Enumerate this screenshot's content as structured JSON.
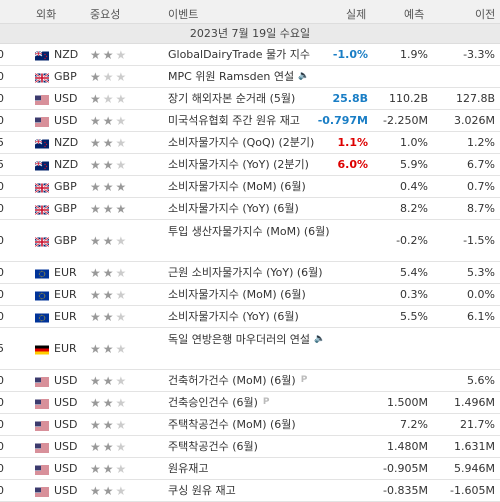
{
  "header": {
    "col_currency": "외화",
    "col_importance": "중요성",
    "col_event": "이벤트",
    "col_actual": "실제",
    "col_forecast": "예측",
    "col_previous": "이전"
  },
  "date_label": "2023년 7월 19일 수요일",
  "rows": [
    {
      "time": "0",
      "cur": "NZD",
      "flag": "nz",
      "stars": 2,
      "event": "GlobalDairyTrade 물가 지수",
      "actual": "-1.0%",
      "actual_color": "blue",
      "forecast": "1.9%",
      "previous": "-3.3%"
    },
    {
      "time": "0",
      "cur": "GBP",
      "flag": "gb",
      "stars": 1,
      "event": "MPC 위원 Ramsden 연설",
      "speech": true,
      "actual": "",
      "actual_color": "",
      "forecast": "",
      "previous": ""
    },
    {
      "time": "0",
      "cur": "USD",
      "flag": "us",
      "stars": 1,
      "event": "장기 해외자본 순거래 (5월)",
      "actual": "25.8B",
      "actual_color": "blue",
      "forecast": "110.2B",
      "previous": "127.8B"
    },
    {
      "time": "0",
      "cur": "USD",
      "flag": "us",
      "stars": 2,
      "event": "미국석유협회 주간 원유 재고",
      "actual": "-0.797M",
      "actual_color": "blue",
      "forecast": "-2.250M",
      "previous": "3.026M"
    },
    {
      "time": "5",
      "cur": "NZD",
      "flag": "nz",
      "stars": 2,
      "event": "소비자물가지수 (QoQ) (2분기)",
      "actual": "1.1%",
      "actual_color": "red",
      "forecast": "1.0%",
      "previous": "1.2%"
    },
    {
      "time": "5",
      "cur": "NZD",
      "flag": "nz",
      "stars": 2,
      "event": "소비자물가지수 (YoY) (2분기)",
      "actual": "6.0%",
      "actual_color": "red",
      "forecast": "5.9%",
      "previous": "6.7%"
    },
    {
      "time": "0",
      "cur": "GBP",
      "flag": "gb",
      "stars": 3,
      "event": "소비자물가지수 (MoM) (6월)",
      "actual": "",
      "actual_color": "",
      "forecast": "0.4%",
      "previous": "0.7%"
    },
    {
      "time": "0",
      "cur": "GBP",
      "flag": "gb",
      "stars": 3,
      "event": "소비자물가지수 (YoY) (6월)",
      "actual": "",
      "actual_color": "",
      "forecast": "8.2%",
      "previous": "8.7%"
    },
    {
      "time": "0",
      "cur": "GBP",
      "flag": "gb",
      "stars": 2,
      "event": "투입 생산자물가지수 (MoM) (6월)",
      "tall": true,
      "actual": "",
      "actual_color": "",
      "forecast": "-0.2%",
      "previous": "-1.5%"
    },
    {
      "time": "0",
      "cur": "EUR",
      "flag": "eu",
      "stars": 2,
      "event": "근원 소비자물가지수 (YoY) (6월)",
      "actual": "",
      "actual_color": "",
      "forecast": "5.4%",
      "previous": "5.3%"
    },
    {
      "time": "0",
      "cur": "EUR",
      "flag": "eu",
      "stars": 2,
      "event": "소비자물가지수 (MoM) (6월)",
      "actual": "",
      "actual_color": "",
      "forecast": "0.3%",
      "previous": "0.0%"
    },
    {
      "time": "0",
      "cur": "EUR",
      "flag": "eu",
      "stars": 2,
      "event": "소비자물가지수 (YoY) (6월)",
      "actual": "",
      "actual_color": "",
      "forecast": "5.5%",
      "previous": "6.1%"
    },
    {
      "time": "5",
      "cur": "EUR",
      "flag": "de",
      "stars": 2,
      "event": "독일 연방은행 마우더러의 연설",
      "speech": true,
      "tall": true,
      "actual": "",
      "actual_color": "",
      "forecast": "",
      "previous": ""
    },
    {
      "time": "0",
      "cur": "USD",
      "flag": "us",
      "stars": 2,
      "event": "건축허가건수 (MoM) (6월)",
      "pmark": true,
      "actual": "",
      "actual_color": "",
      "forecast": "",
      "previous": "5.6%"
    },
    {
      "time": "0",
      "cur": "USD",
      "flag": "us",
      "stars": 2,
      "event": "건축승인건수 (6월)",
      "pmark": true,
      "actual": "",
      "actual_color": "",
      "forecast": "1.500M",
      "previous": "1.496M"
    },
    {
      "time": "0",
      "cur": "USD",
      "flag": "us",
      "stars": 2,
      "event": "주택착공건수 (MoM) (6월)",
      "actual": "",
      "actual_color": "",
      "forecast": "7.2%",
      "previous": "21.7%"
    },
    {
      "time": "0",
      "cur": "USD",
      "flag": "us",
      "stars": 2,
      "event": "주택착공건수 (6월)",
      "actual": "",
      "actual_color": "",
      "forecast": "1.480M",
      "previous": "1.631M"
    },
    {
      "time": "0",
      "cur": "USD",
      "flag": "us",
      "stars": 2,
      "event": "원유재고",
      "actual": "",
      "actual_color": "",
      "forecast": "-0.905M",
      "previous": "5.946M"
    },
    {
      "time": "0",
      "cur": "USD",
      "flag": "us",
      "stars": 2,
      "event": "쿠싱 원유 재고",
      "actual": "",
      "actual_color": "",
      "forecast": "-0.835M",
      "previous": "-1.605M"
    }
  ]
}
